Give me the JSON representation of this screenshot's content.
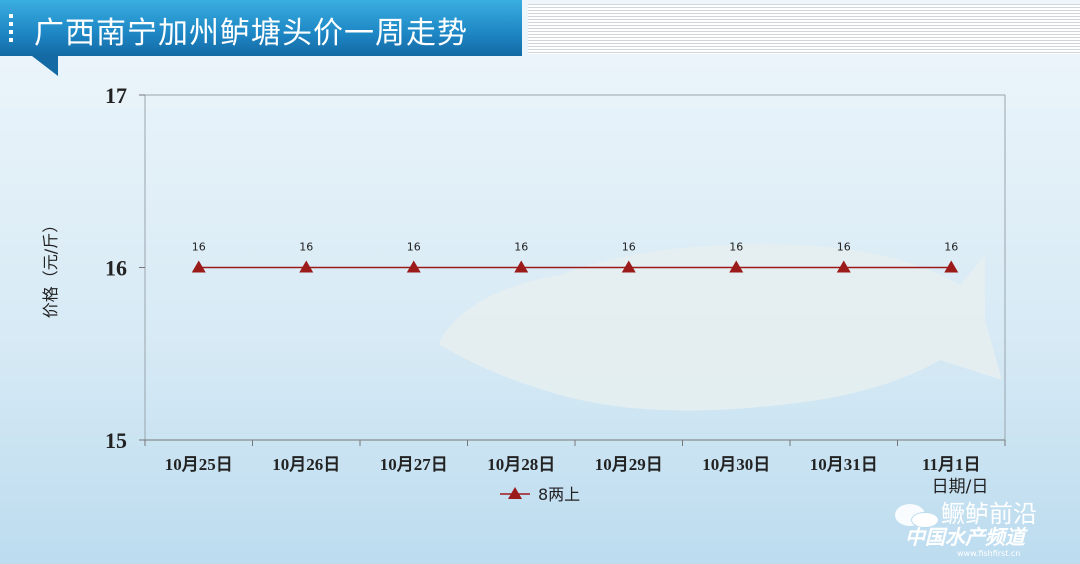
{
  "header": {
    "title": "广西南宁加州鲈塘头价一周走势"
  },
  "chart_data": {
    "type": "line",
    "title": "广西南宁加州鲈塘头价一周走势",
    "xlabel": "日期/日",
    "ylabel": "价格（元/斤）",
    "categories": [
      "10月25日",
      "10月26日",
      "10月27日",
      "10月28日",
      "10月29日",
      "10月30日",
      "10月31日",
      "11月1日"
    ],
    "series": [
      {
        "name": "8两上",
        "values": [
          16,
          16,
          16,
          16,
          16,
          16,
          16,
          16
        ],
        "color": "#9b1b1b",
        "marker": "triangle"
      }
    ],
    "ylim": [
      15,
      17
    ],
    "yticks": [
      15,
      16,
      17
    ],
    "grid": false,
    "legend": "bottom",
    "data_labels": true
  },
  "watermark": {
    "line1": "鳜鲈前沿",
    "line2": "中国水产频道",
    "line3": "www.fishfirst.cn"
  }
}
